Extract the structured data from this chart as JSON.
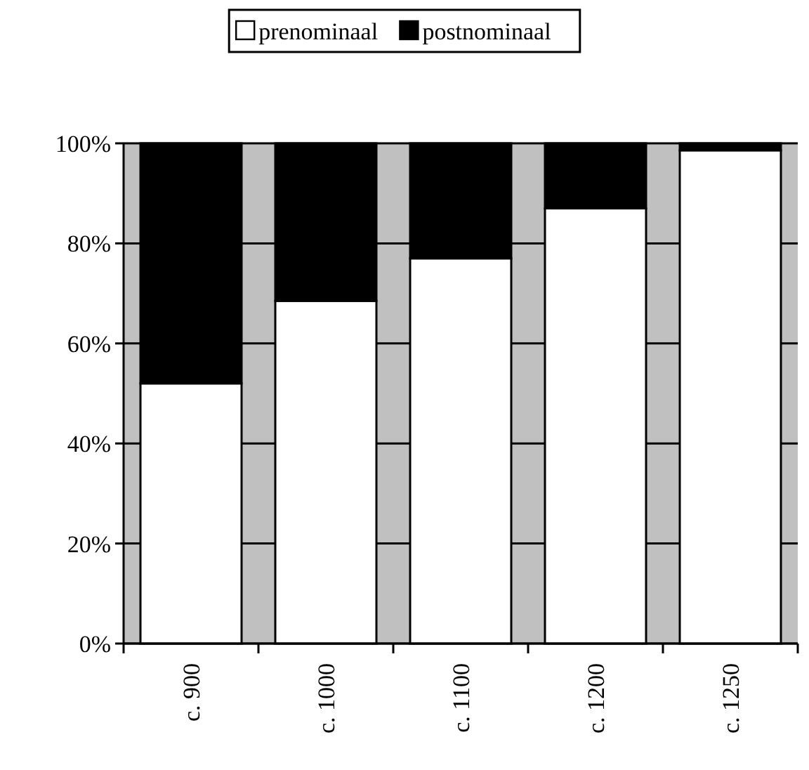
{
  "chart_data": {
    "type": "bar",
    "stacked": true,
    "categories": [
      "c. 900",
      "c. 1000",
      "c. 1100",
      "c. 1200",
      "c. 1250"
    ],
    "series": [
      {
        "name": "prenominaal",
        "color": "#ffffff",
        "values": [
          52,
          68.5,
          77,
          87,
          98.6
        ]
      },
      {
        "name": "postnominaal",
        "color": "#000000",
        "values": [
          48,
          31.5,
          23,
          13,
          1.4
        ]
      }
    ],
    "ylim": [
      0,
      100
    ],
    "yticks": [
      {
        "value": 0,
        "label": "0%"
      },
      {
        "value": 20,
        "label": "20%"
      },
      {
        "value": 40,
        "label": "40%"
      },
      {
        "value": 60,
        "label": "60%"
      },
      {
        "value": 80,
        "label": "80%"
      },
      {
        "value": 100,
        "label": "100%"
      }
    ],
    "grid": "y",
    "legend": "top"
  }
}
